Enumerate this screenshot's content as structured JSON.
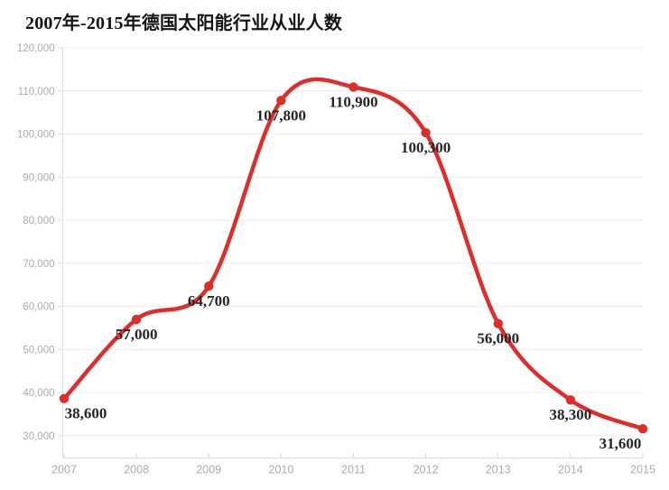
{
  "title": "2007年-2015年德国太阳能行业从业人数",
  "chart_data": {
    "type": "line",
    "title": "2007年-2015年德国太阳能行业从业人数",
    "categories": [
      "2007",
      "2008",
      "2009",
      "2010",
      "2011",
      "2012",
      "2013",
      "2014",
      "2015"
    ],
    "values": [
      38600,
      57000,
      64700,
      107800,
      110900,
      100300,
      56000,
      38300,
      31600
    ],
    "value_labels": [
      "38,600",
      "57,000",
      "64,700",
      "107,800",
      "110,900",
      "100,300",
      "56,000",
      "38,300",
      "31,600"
    ],
    "series_name": "德国太阳能行业从业人数",
    "xlabel": "",
    "ylabel": "",
    "ylim": [
      30000,
      120000
    ],
    "y_tick_interval": 10000,
    "y_tick_labels": [
      "120,000",
      "110,000",
      "100,000",
      "90,000",
      "80,000",
      "70,000",
      "60,000",
      "50,000",
      "40,000",
      "30,000"
    ],
    "grid": true,
    "legend_position": "none",
    "smooth": true,
    "marker": "circle"
  },
  "colors": {
    "line": "#dd2e2c",
    "marker": "#dd2e2c",
    "title_text": "#141414",
    "data_label_text": "#262626",
    "axis_text": "#ababab",
    "grid_line": "#ececec",
    "axis_line": "#e0e0e0",
    "tick_line": "#d6d6d6",
    "background": "#ffffff"
  }
}
